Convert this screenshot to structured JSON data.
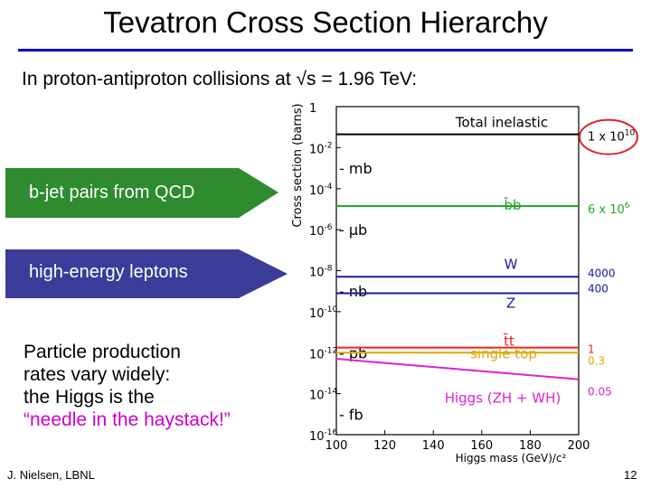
{
  "slide": {
    "title": "Tevatron Cross Section Hierarchy",
    "subtitle": "In proton-antiproton collisions at √s = 1.96 TeV:",
    "arrow_bjet": "b-jet pairs from QCD",
    "arrow_leptons": "high-energy leptons",
    "note_lines": [
      "Particle production",
      "rates vary widely:",
      "the Higgs is the"
    ],
    "note_highlight": "“needle in the haystack!”",
    "author": "J. Nielsen, LBNL",
    "page_number": "12",
    "colors": {
      "title_rule": "#0000cc",
      "arrow_green": "#2e8b2e",
      "arrow_blue": "#3b3b9a",
      "highlight": "#cc00cc"
    }
  },
  "chart_data": {
    "type": "line",
    "title": "",
    "xlabel": "Higgs mass (GeV)/c²",
    "ylabel": "Cross section (barns)",
    "xlim": [
      100,
      200
    ],
    "ylim_exponent": [
      0,
      -16
    ],
    "x_ticks": [
      "100",
      "120",
      "140",
      "160",
      "180",
      "200"
    ],
    "y_ticks": [
      {
        "base": "1",
        "exp": ""
      },
      {
        "base": "10",
        "exp": "-2"
      },
      {
        "base": "10",
        "exp": "-4"
      },
      {
        "base": "10",
        "exp": "-6"
      },
      {
        "base": "10",
        "exp": "-8"
      },
      {
        "base": "10",
        "exp": "-10"
      },
      {
        "base": "10",
        "exp": "-12"
      },
      {
        "base": "10",
        "exp": "-14"
      },
      {
        "base": "10",
        "exp": "-16"
      }
    ],
    "unit_markers": [
      {
        "label": "mb",
        "exp": -3
      },
      {
        "label": "μb",
        "exp": -6
      },
      {
        "label": "nb",
        "exp": -9
      },
      {
        "label": "pb",
        "exp": -12
      },
      {
        "label": "fb",
        "exp": -15
      }
    ],
    "series": [
      {
        "name": "Total inelastic",
        "color": "#000000",
        "exp_start": -1.35,
        "exp_end": -1.35,
        "value_label": "1 x 10",
        "value_exp": "10",
        "label_color": "#000000",
        "circled": true
      },
      {
        "name": "b̄b",
        "color": "#22aa22",
        "exp_start": -4.85,
        "exp_end": -4.85,
        "value_label": "6 x 10",
        "value_exp": "6",
        "label_color": "#22aa22"
      },
      {
        "name": "W",
        "color": "#1a1aaa",
        "exp_start": -8.3,
        "exp_end": -8.3,
        "value_label": "4000",
        "label_color": "#1a1aaa"
      },
      {
        "name": "Z",
        "color": "#1a1aaa",
        "exp_start": -9.1,
        "exp_end": -9.1,
        "value_label": "400",
        "label_color": "#1a1aaa"
      },
      {
        "name": "t̄t",
        "color": "#ee2222",
        "exp_start": -11.75,
        "exp_end": -11.75,
        "value_label": "1",
        "label_color": "#ee2222"
      },
      {
        "name": "single top",
        "color": "#ddaa00",
        "exp_start": -12.0,
        "exp_end": -12.0,
        "value_label": "0.3",
        "label_color": "#ddaa00"
      },
      {
        "name": "Higgs (ZH + WH)",
        "color": "#dd22cc",
        "exp_start": -12.3,
        "exp_end": -13.3,
        "value_label": "0.05",
        "label_color": "#dd22cc"
      }
    ]
  }
}
